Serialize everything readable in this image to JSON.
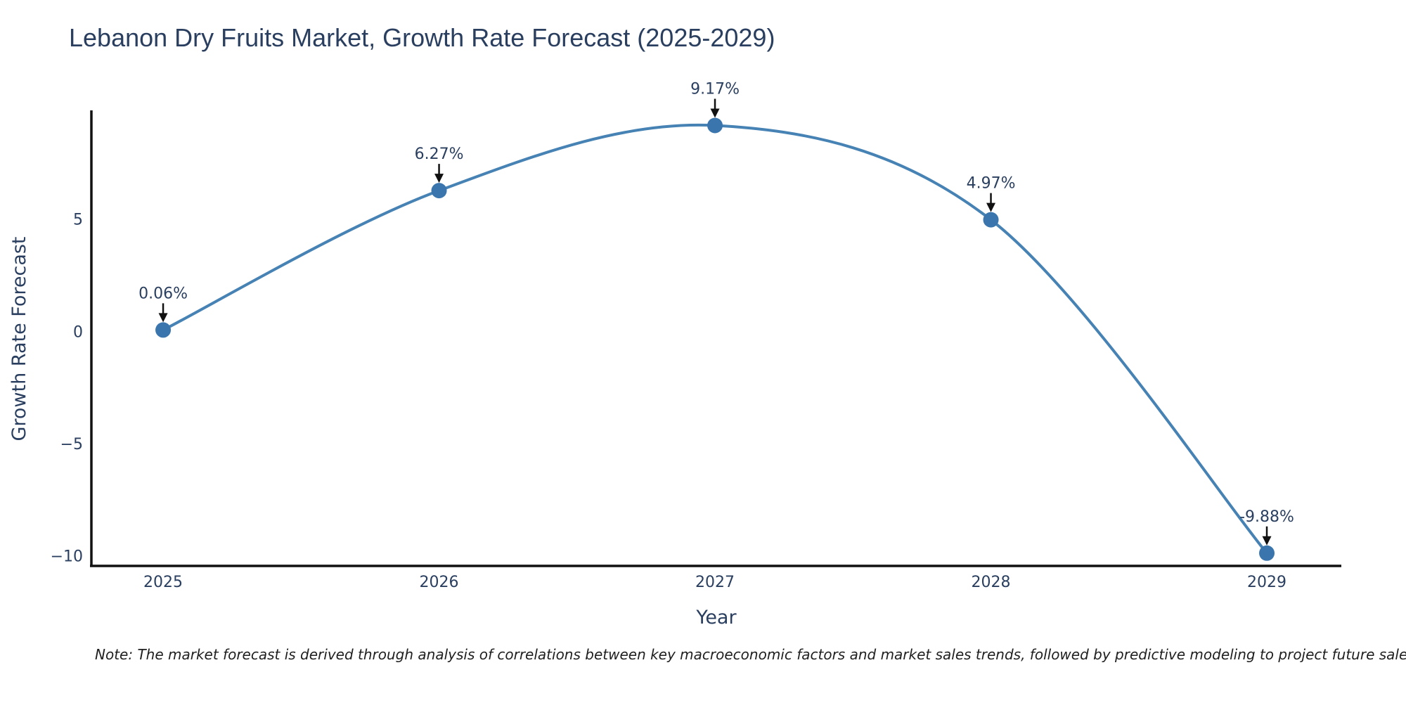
{
  "chart_data": {
    "type": "line",
    "title": "Lebanon Dry Fruits Market, Growth Rate Forecast (2025-2029)",
    "xlabel": "Year",
    "ylabel": "Growth Rate Forecast",
    "x": [
      2025,
      2026,
      2027,
      2028,
      2029
    ],
    "values": [
      0.06,
      6.27,
      9.17,
      4.97,
      -9.88
    ],
    "point_labels": [
      "0.06%",
      "6.27%",
      "9.17%",
      "4.97%",
      "-9.88%"
    ],
    "x_tick_labels": [
      "2025",
      "2026",
      "2027",
      "2028",
      "2029"
    ],
    "y_ticks": [
      5,
      0,
      -5,
      -10
    ],
    "y_tick_labels": [
      "5",
      "0",
      "−5",
      "−10"
    ],
    "xlim": [
      2024.74,
      2029.27
    ],
    "ylim": [
      -10.45,
      9.75
    ],
    "grid": false,
    "legend_position": "none",
    "line_color": "#4682b4",
    "marker_color": "#3a76ad",
    "axis_color": "#111111",
    "text_color": "#2a3f5f",
    "annotation_color": "#111111",
    "note_color": "#1f1f1f",
    "note": "Note: The market forecast is derived through analysis of correlations between key macroeconomic factors and market sales trends, followed by predictive modeling to project future sales"
  }
}
